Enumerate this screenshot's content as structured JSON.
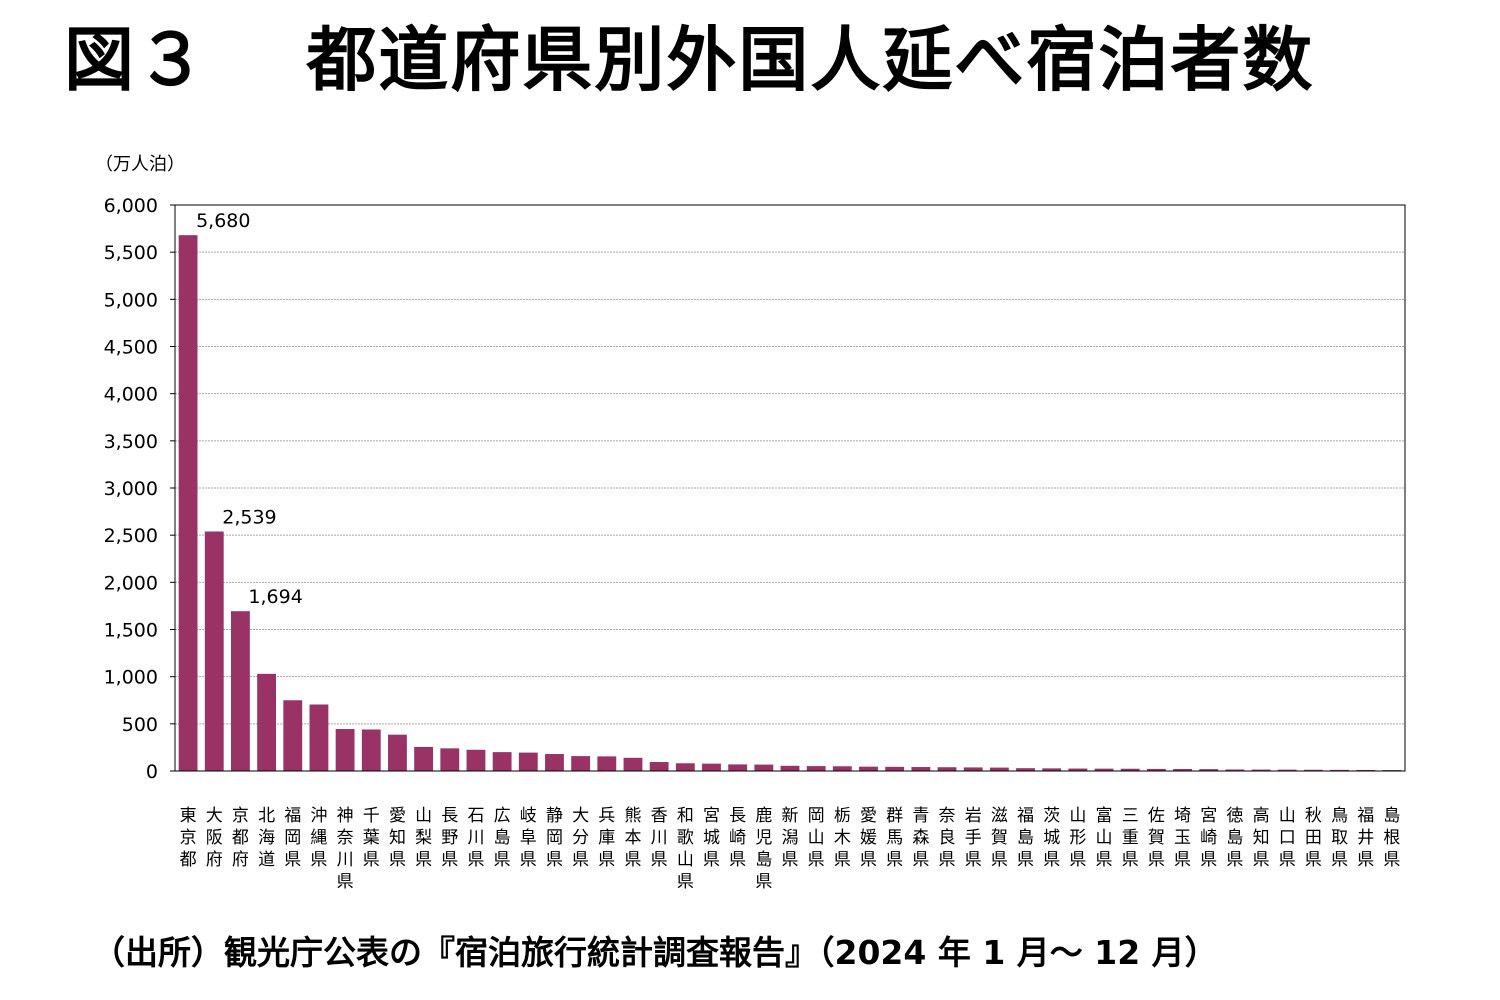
{
  "title": "図３　 都道府県別外国人延べ宿泊者数",
  "source": "（出所）観光庁公表の『宿泊旅行統計調査報告』（2024 年 1 月～ 12 月）",
  "colors": {
    "bar": "#993366",
    "grid": "#a6a6a6",
    "axis": "#000000"
  },
  "chart_data": {
    "type": "bar",
    "title": "図３　 都道府県別外国人延べ宿泊者数",
    "ylabel": "（万人泊）",
    "xlabel": "",
    "ylim": [
      0,
      6000
    ],
    "yticks": [
      0,
      500,
      1000,
      1500,
      2000,
      2500,
      3000,
      3500,
      4000,
      4500,
      5000,
      5500,
      6000
    ],
    "ytick_labels": [
      "0",
      "500",
      "1,000",
      "1,500",
      "2,000",
      "2,500",
      "3,000",
      "3,500",
      "4,000",
      "4,500",
      "5,000",
      "5,500",
      "6,000"
    ],
    "grid": true,
    "legend": "none",
    "categories": [
      "東京都",
      "大阪府",
      "京都府",
      "北海道",
      "福岡県",
      "沖縄県",
      "神奈川県",
      "千葉県",
      "愛知県",
      "山梨県",
      "長野県",
      "石川県",
      "広島県",
      "岐阜県",
      "静岡県",
      "大分県",
      "兵庫県",
      "熊本県",
      "香川県",
      "和歌山県",
      "宮城県",
      "長崎県",
      "鹿児島県",
      "新潟県",
      "岡山県",
      "栃木県",
      "愛媛県",
      "群馬県",
      "青森県",
      "奈良県",
      "岩手県",
      "滋賀県",
      "福島県",
      "茨城県",
      "山形県",
      "富山県",
      "三重県",
      "佐賀県",
      "埼玉県",
      "宮崎県",
      "徳島県",
      "高知県",
      "山口県",
      "秋田県",
      "鳥取県",
      "福井県",
      "島根県"
    ],
    "values": [
      5680,
      2539,
      1694,
      1030,
      750,
      705,
      445,
      440,
      385,
      255,
      240,
      225,
      200,
      195,
      180,
      158,
      155,
      140,
      95,
      82,
      78,
      70,
      68,
      55,
      52,
      50,
      46,
      44,
      42,
      40,
      38,
      36,
      30,
      28,
      26,
      25,
      24,
      22,
      21,
      20,
      16,
      15,
      14,
      13,
      12,
      11,
      10
    ],
    "data_labels": [
      {
        "index": 0,
        "text": "5,680"
      },
      {
        "index": 1,
        "text": "2,539"
      },
      {
        "index": 2,
        "text": "1,694"
      }
    ]
  }
}
